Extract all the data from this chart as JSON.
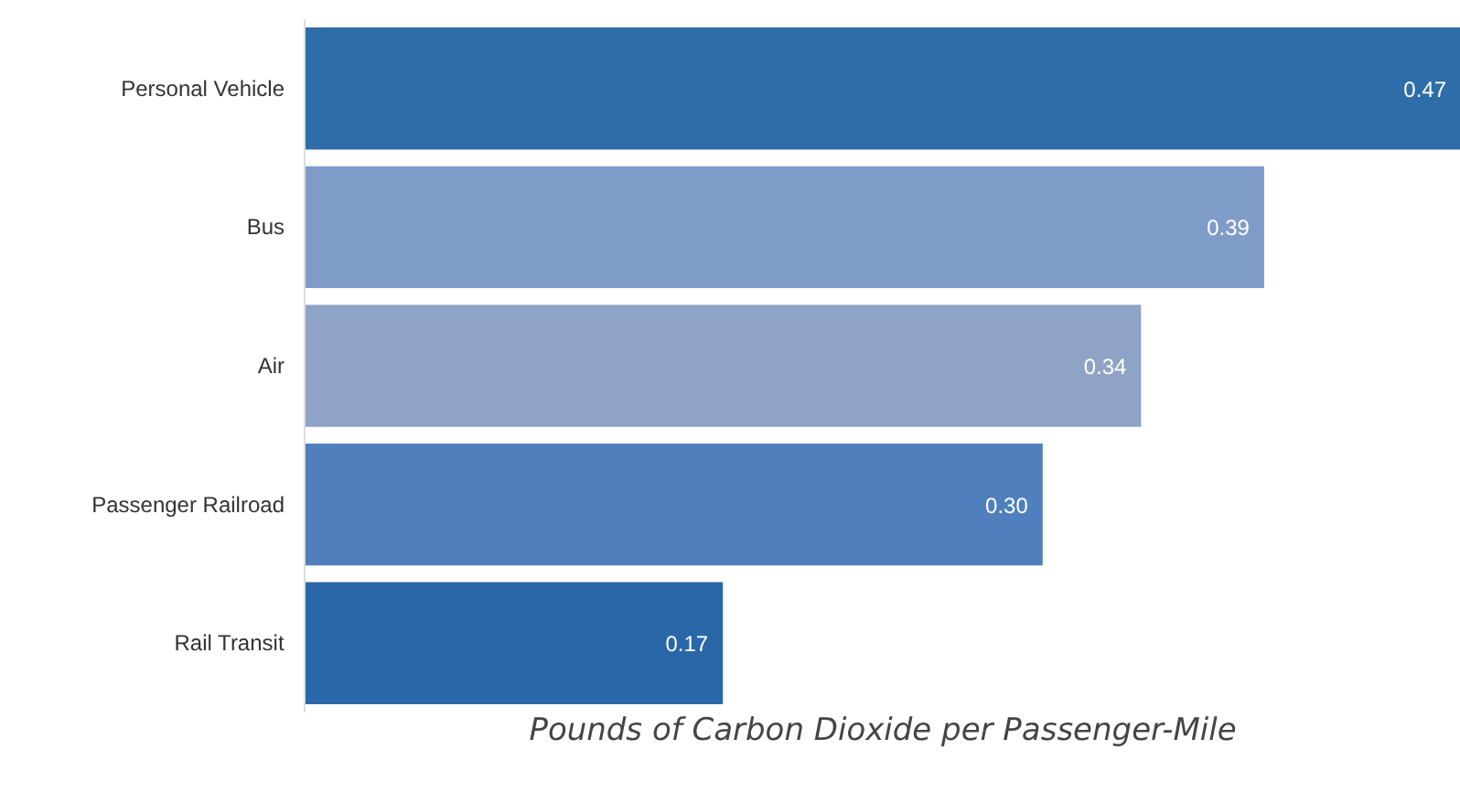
{
  "chart_data": {
    "type": "bar",
    "orientation": "horizontal",
    "xlabel": "Pounds of Carbon Dioxide per Passenger-Mile",
    "categories": [
      "Personal Vehicle",
      "Bus",
      "Air",
      "Passenger Railroad",
      "Rail Transit"
    ],
    "values": [
      0.47,
      0.39,
      0.34,
      0.3,
      0.17
    ],
    "colors": [
      "#2e6da8",
      "#7f9cc9",
      "#8fa3c6",
      "#4f80bd",
      "#2a67a8"
    ],
    "value_labels": [
      "0.47",
      "0.39",
      "0.34",
      "0.30",
      "0.17"
    ],
    "xlim": [
      0,
      0.47
    ],
    "tick_labels": "y"
  }
}
